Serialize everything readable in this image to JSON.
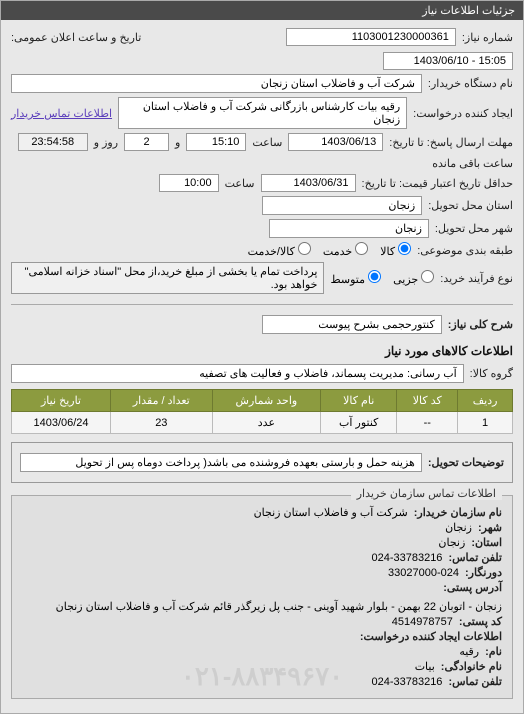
{
  "header": "جزئیات اطلاعات نیاز",
  "need_number": {
    "label": "شماره نیاز:",
    "value": "1103001230000361"
  },
  "public_announce": {
    "label": "تاریخ و ساعت اعلان عمومی:",
    "value": "15:05 - 1403/06/10"
  },
  "buyer_device": {
    "label": "نام دستگاه خریدار:",
    "value": "شرکت آب و فاضلاب استان زنجان"
  },
  "creator": {
    "label": "ایجاد کننده درخواست:",
    "value": "رقیه بیات کارشناس بازرگانی شرکت آب و فاضلاب استان زنجان"
  },
  "contact_link": "اطلاعات تماس خریدار",
  "deadline": {
    "label": "مهلت ارسال پاسخ: تا تاریخ:",
    "date": "1403/06/13",
    "time_label": "ساعت",
    "time": "15:10",
    "sep": "و",
    "days": "2",
    "days_label": "روز و",
    "remain": "23:54:58",
    "remain_label": "ساعت باقی مانده"
  },
  "price_validity": {
    "label": "حداقل تاریخ اعتبار قیمت: تا تاریخ:",
    "date": "1403/06/31",
    "time_label": "ساعت",
    "time": "10:00"
  },
  "delivery_province": {
    "label": "استان محل تحویل:",
    "value": "زنجان"
  },
  "delivery_city": {
    "label": "شهر محل تحویل:",
    "value": "زنجان"
  },
  "subject_class": {
    "label": "طبقه بندی موضوعی:",
    "options": {
      "kala": "کالا",
      "khadmat": "خدمت",
      "kala_khadmat": "کالا/خدمت"
    },
    "selected": "kala"
  },
  "buy_process": {
    "label": "نوع فرآیند خرید:",
    "options": {
      "small": "جزیی",
      "medium": "متوسط"
    },
    "selected": "medium",
    "note": "پرداخت تمام یا بخشی از مبلغ خرید،از محل \"اسناد خزانه اسلامی\" خواهد بود."
  },
  "need_desc": {
    "label": "شرح کلی نیاز:",
    "value": "کنتورحجمی بشرح پیوست"
  },
  "goods_section_title": "اطلاعات کالاهای مورد نیاز",
  "goods_group": {
    "label": "گروه کالا:",
    "value": "آب رسانی: مدیریت پسماند، فاضلاب و فعالیت های تصفیه"
  },
  "table": {
    "columns": [
      "ردیف",
      "کد کالا",
      "نام کالا",
      "واحد شمارش",
      "تعداد / مقدار",
      "تاریخ نیاز"
    ],
    "rows": [
      [
        "1",
        "--",
        "کنتور آب",
        "عدد",
        "23",
        "1403/06/24"
      ]
    ]
  },
  "delivery_terms": {
    "label": "توضیحات تحویل:",
    "value": "هزینه حمل و بارستی بعهده فروشنده می باشد( پرداخت دوماه پس از تحویل"
  },
  "contact": {
    "title": "اطلاعات تماس سازمان خریدار",
    "org": {
      "label": "نام سازمان خریدار:",
      "value": "شرکت آب و فاضلاب استان زنجان"
    },
    "province": {
      "label": "شهر:",
      "value": "زنجان"
    },
    "city": {
      "label": "استان:",
      "value": "زنجان"
    },
    "phone": {
      "label": "تلفن تماس:",
      "value": "024-33783216"
    },
    "fax": {
      "label": "دورنگار:",
      "value": "33027000-024"
    },
    "postal_address": {
      "label": "آدرس پستی:",
      "value": "زنجان - اتوبان 22 بهمن - بلوار شهید آوینی - جنب پل زیرگذر قائم شرکت آب و فاضلاب استان زنجان"
    },
    "postal_code": {
      "label": "کد پستی:",
      "value": "4514978757"
    },
    "req_creator_title": "اطلاعات ایجاد کننده درخواست:",
    "name": {
      "label": "نام:",
      "value": "رقیه"
    },
    "surname": {
      "label": "نام خانوادگی:",
      "value": "بیات"
    },
    "contact_phone": {
      "label": "تلفن تماس:",
      "value": "024-33783216"
    },
    "watermark": "۰۲۱-۸۸۳۴۹۶۷۰"
  }
}
